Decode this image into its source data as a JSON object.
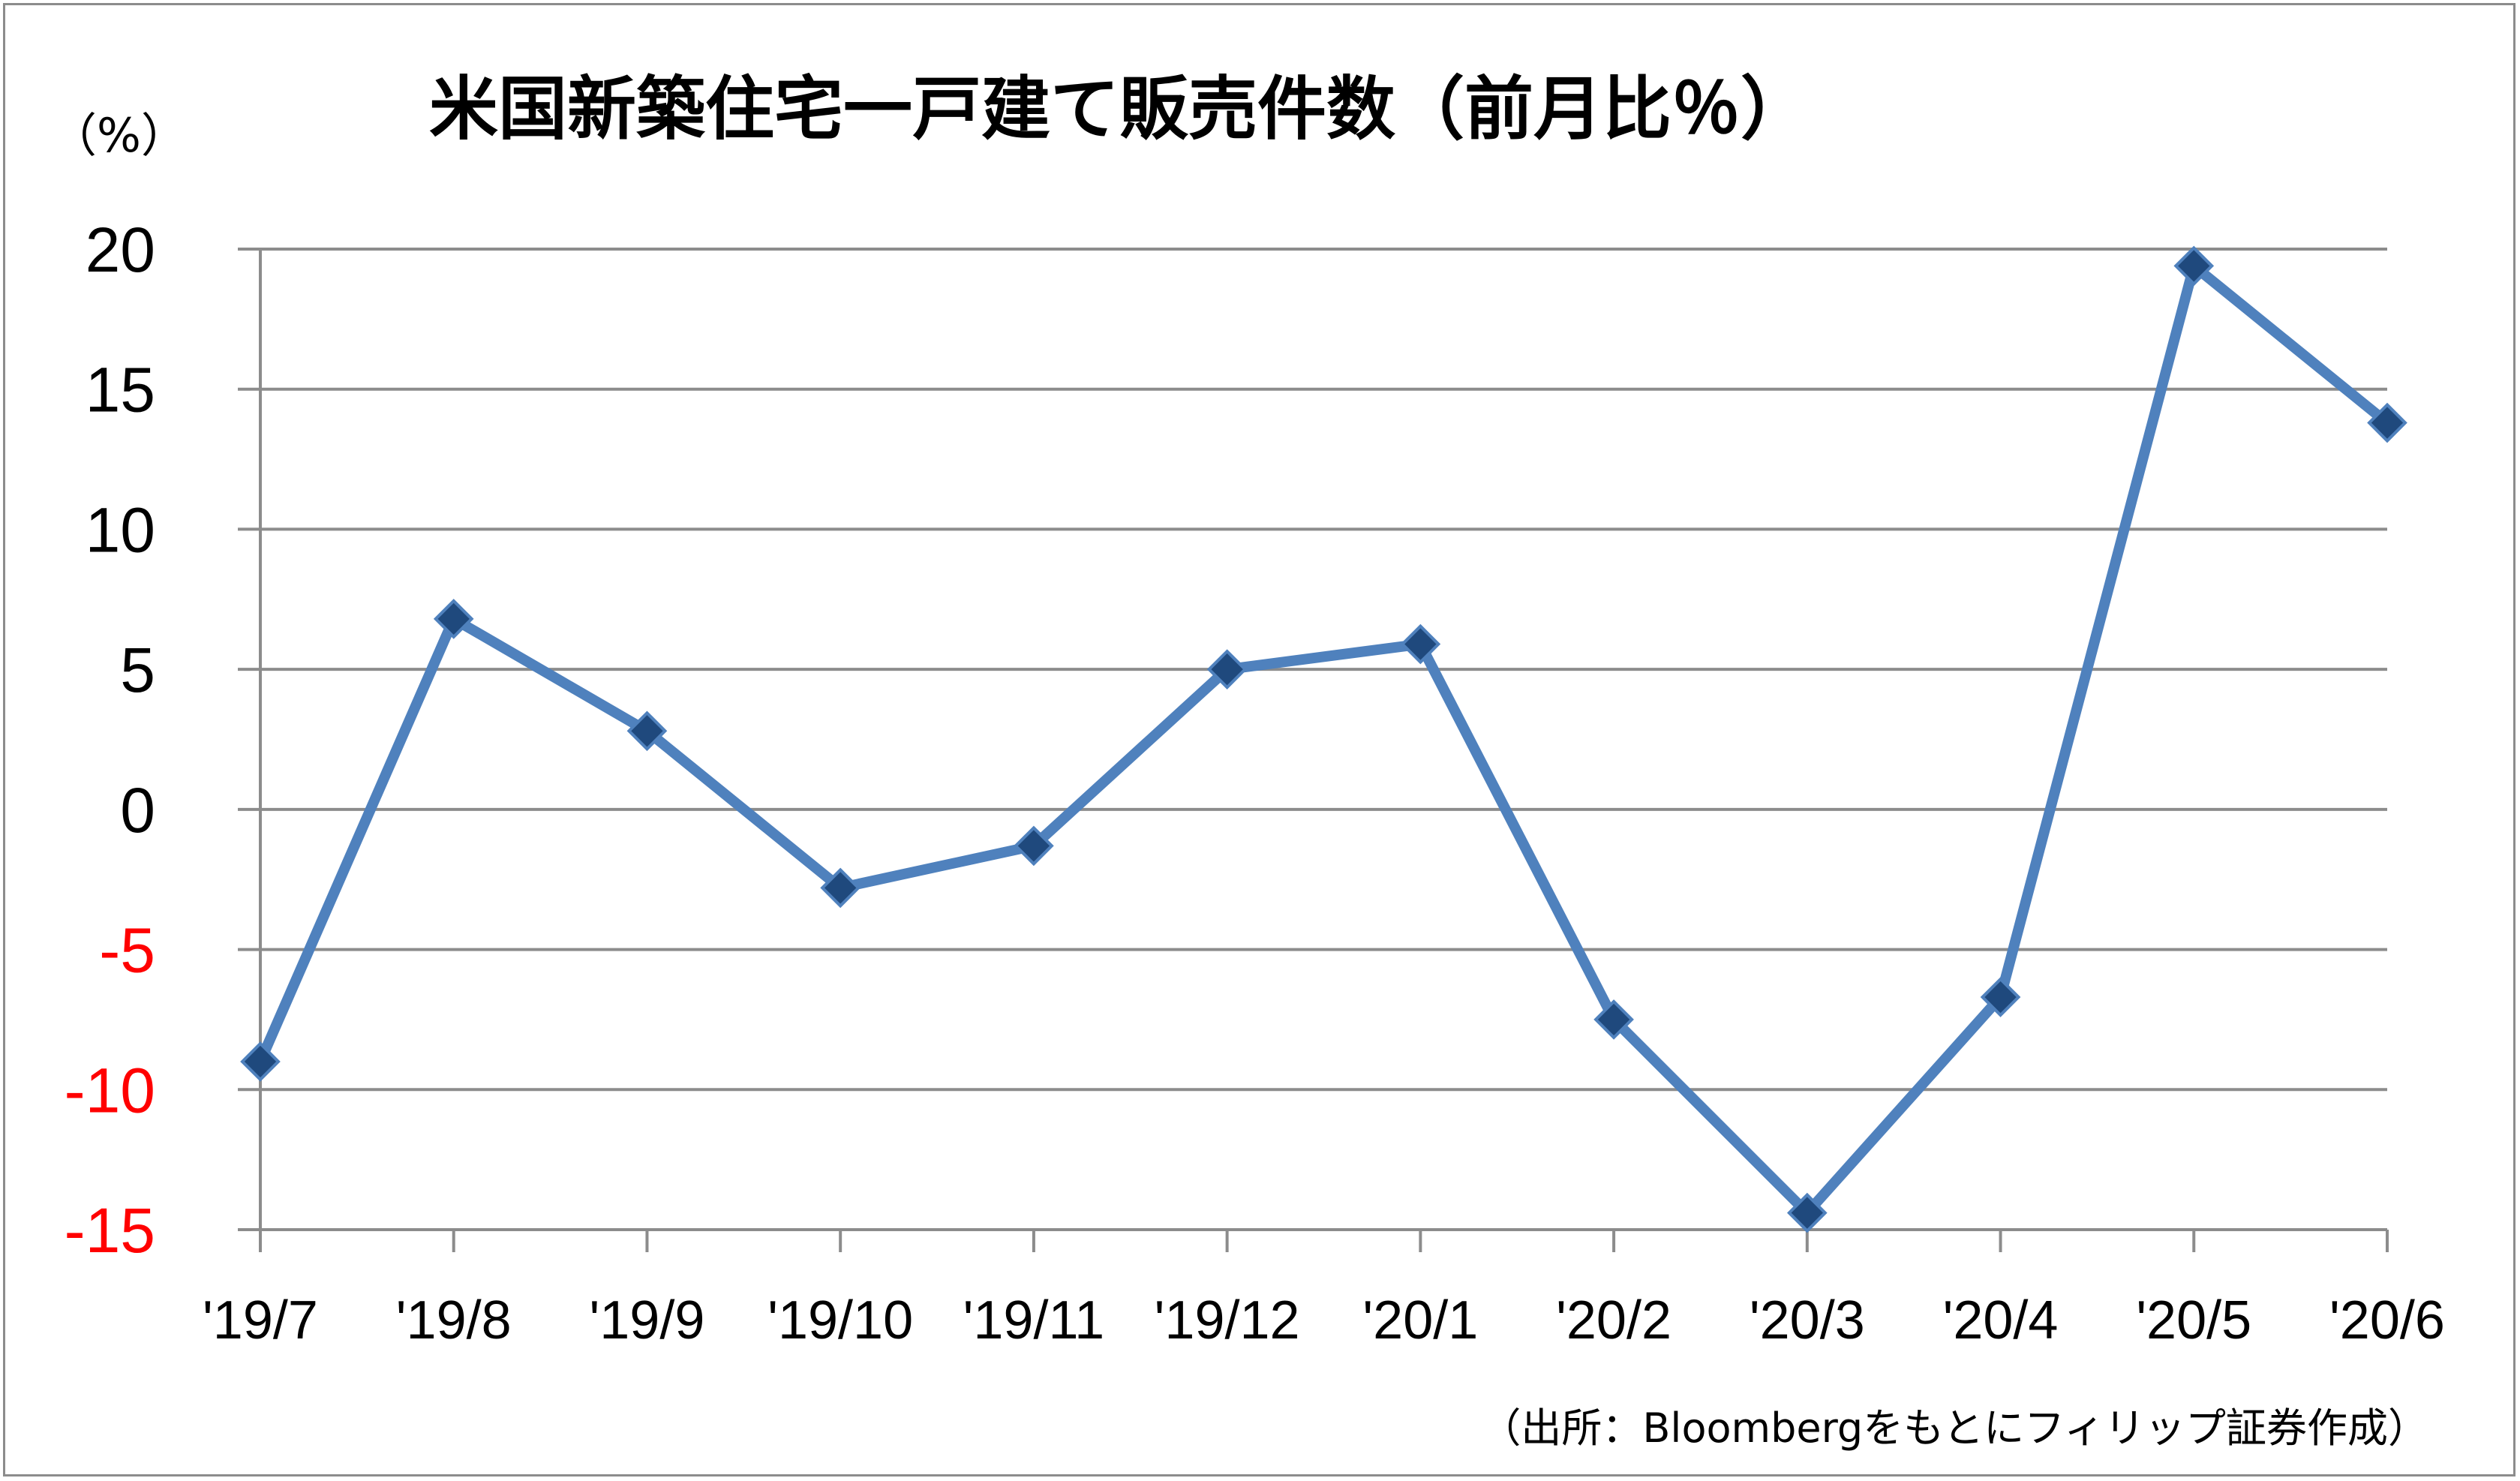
{
  "chart_data": {
    "type": "line",
    "title": "米国新築住宅一戸建て販売件数（前月比％）",
    "unit_label": "（%）",
    "source": "（出所：Bloombergをもとにフィリップ証券作成）",
    "categories": [
      "'19/7",
      "'19/8",
      "'19/9",
      "'19/10",
      "'19/11",
      "'19/12",
      "'20/1",
      "'20/2",
      "'20/3",
      "'20/4",
      "'20/5",
      "'20/6"
    ],
    "series": [
      {
        "values": [
          -9.0,
          6.8,
          2.8,
          -2.8,
          -1.3,
          5.0,
          5.9,
          -7.5,
          -14.4,
          -6.7,
          19.4,
          13.8
        ]
      }
    ],
    "ylim": [
      -15,
      20
    ],
    "yticks": [
      "20",
      "15",
      "10",
      "5",
      "0",
      "-5",
      "-10",
      "-15"
    ],
    "ytick_values": [
      20,
      15,
      10,
      5,
      0,
      -5,
      -10,
      -15
    ],
    "grid": true,
    "legend": "none",
    "colors": {
      "line": "#4f81bd",
      "marker": "#1f497d",
      "marker_edge": "#4f81bd",
      "grid": "#8c8c8c",
      "negative_tick": "#ff0000",
      "positive_tick": "#000000"
    }
  }
}
